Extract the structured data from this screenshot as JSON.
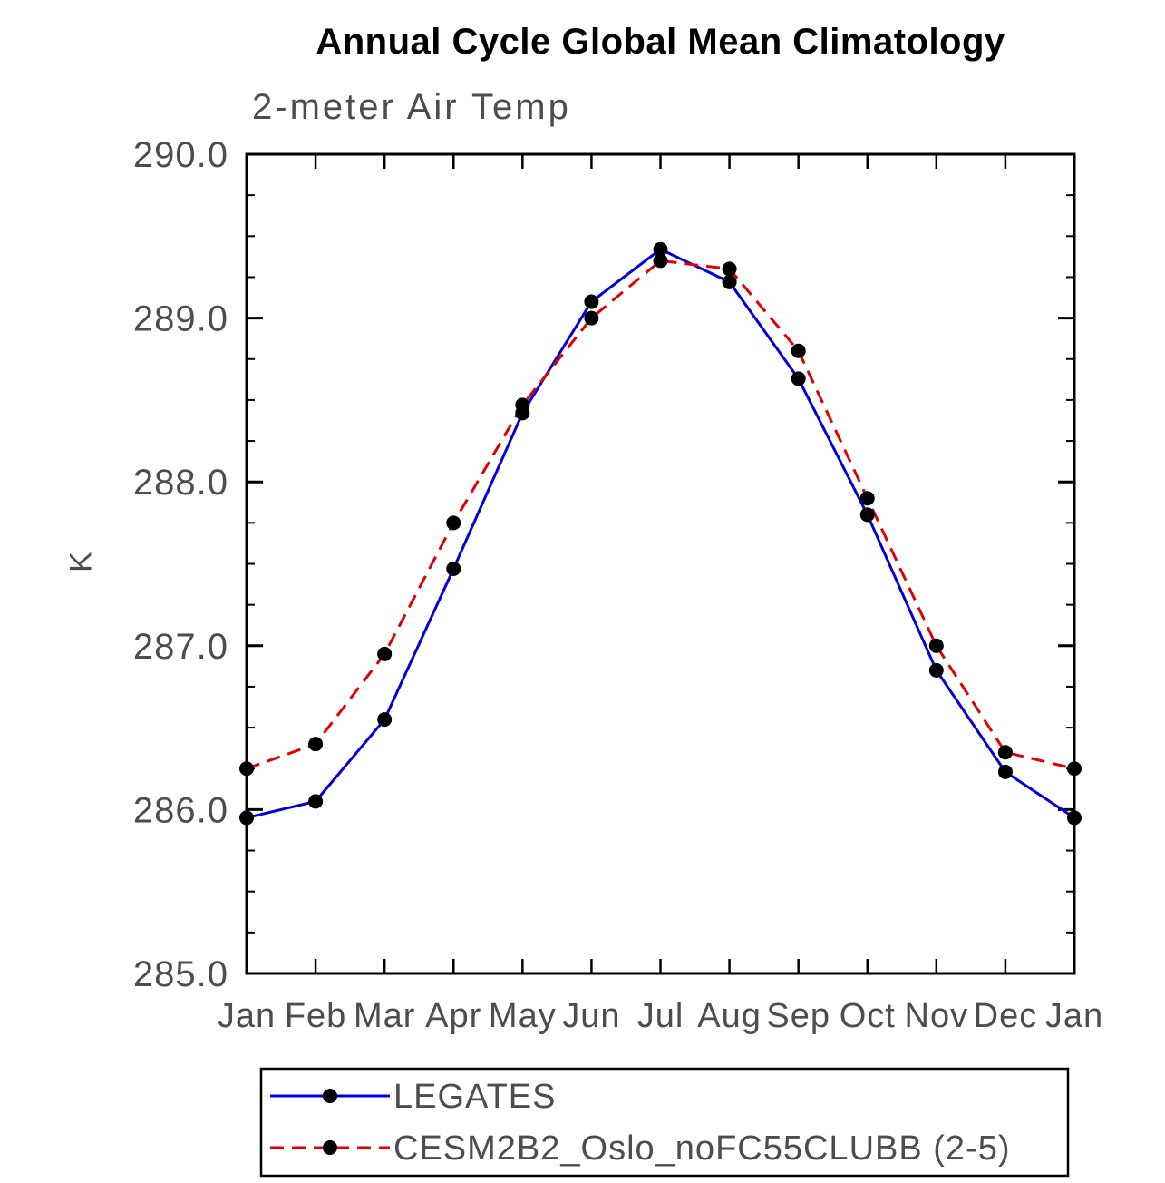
{
  "chart_data": {
    "type": "line",
    "title": "Annual Cycle Global Mean Climatology",
    "subtitle": "2-meter Air Temp",
    "xlabel": "",
    "ylabel": "K",
    "categories": [
      "Jan",
      "Feb",
      "Mar",
      "Apr",
      "May",
      "Jun",
      "Jul",
      "Aug",
      "Sep",
      "Oct",
      "Nov",
      "Dec",
      "Jan"
    ],
    "ylim": [
      285.0,
      290.0
    ],
    "ytick_major": 1.0,
    "ytick_minor": 0.25,
    "ytick_labels": [
      "285.0",
      "286.0",
      "287.0",
      "288.0",
      "289.0",
      "290.0"
    ],
    "grid": false,
    "series": [
      {
        "name": "LEGATES",
        "color": "#0000dd",
        "style": "solid",
        "values": [
          285.95,
          286.05,
          286.55,
          287.47,
          288.42,
          289.1,
          289.42,
          289.22,
          288.63,
          287.8,
          286.85,
          286.23,
          285.95
        ]
      },
      {
        "name": "CESM2B2_Oslo_noFC55CLUBB (2-5)",
        "color": "#e00000",
        "style": "dashed",
        "values": [
          286.25,
          286.4,
          286.95,
          287.75,
          288.47,
          289.0,
          289.35,
          289.3,
          288.8,
          287.9,
          287.0,
          286.35,
          286.25
        ]
      }
    ],
    "marker": {
      "shape": "circle",
      "color": "#000000"
    },
    "legend": {
      "position": "bottom-left",
      "box": true
    },
    "colors": {
      "axis": "#000000",
      "text": "#4d4d4d",
      "title": "#000000"
    }
  }
}
